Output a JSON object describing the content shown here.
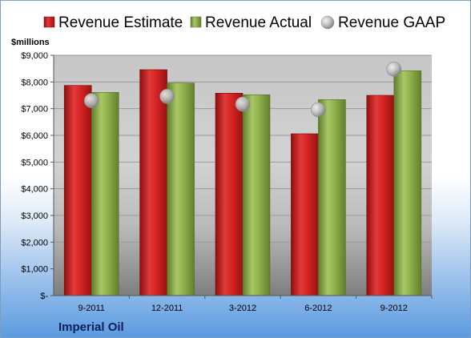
{
  "chart_data": {
    "type": "bar",
    "title": "",
    "ylabel": "$millions",
    "xlabel": "",
    "company": "Imperial Oil",
    "categories": [
      "9-2011",
      "12-2011",
      "3-2012",
      "6-2012",
      "9-2012"
    ],
    "series": [
      {
        "name": "Revenue Estimate",
        "kind": "bar",
        "color": "#d42424",
        "values": [
          7870,
          8460,
          7580,
          6060,
          7500
        ]
      },
      {
        "name": "Revenue Actual",
        "kind": "bar",
        "color": "#8fb04a",
        "values": [
          7610,
          7960,
          7520,
          7340,
          8420
        ]
      },
      {
        "name": "Revenue GAAP",
        "kind": "marker",
        "color": "#b8b8b8",
        "values": [
          7300,
          7460,
          7170,
          6960,
          8480
        ]
      }
    ],
    "ylim": [
      0,
      9000
    ],
    "yticks": [
      0,
      1000,
      2000,
      3000,
      4000,
      5000,
      6000,
      7000,
      8000,
      9000
    ],
    "ytick_labels": [
      "$-",
      "$1,000",
      "$2,000",
      "$3,000",
      "$4,000",
      "$5,000",
      "$6,000",
      "$7,000",
      "$8,000",
      "$9,000"
    ],
    "legend_position": "top",
    "grid": true
  }
}
